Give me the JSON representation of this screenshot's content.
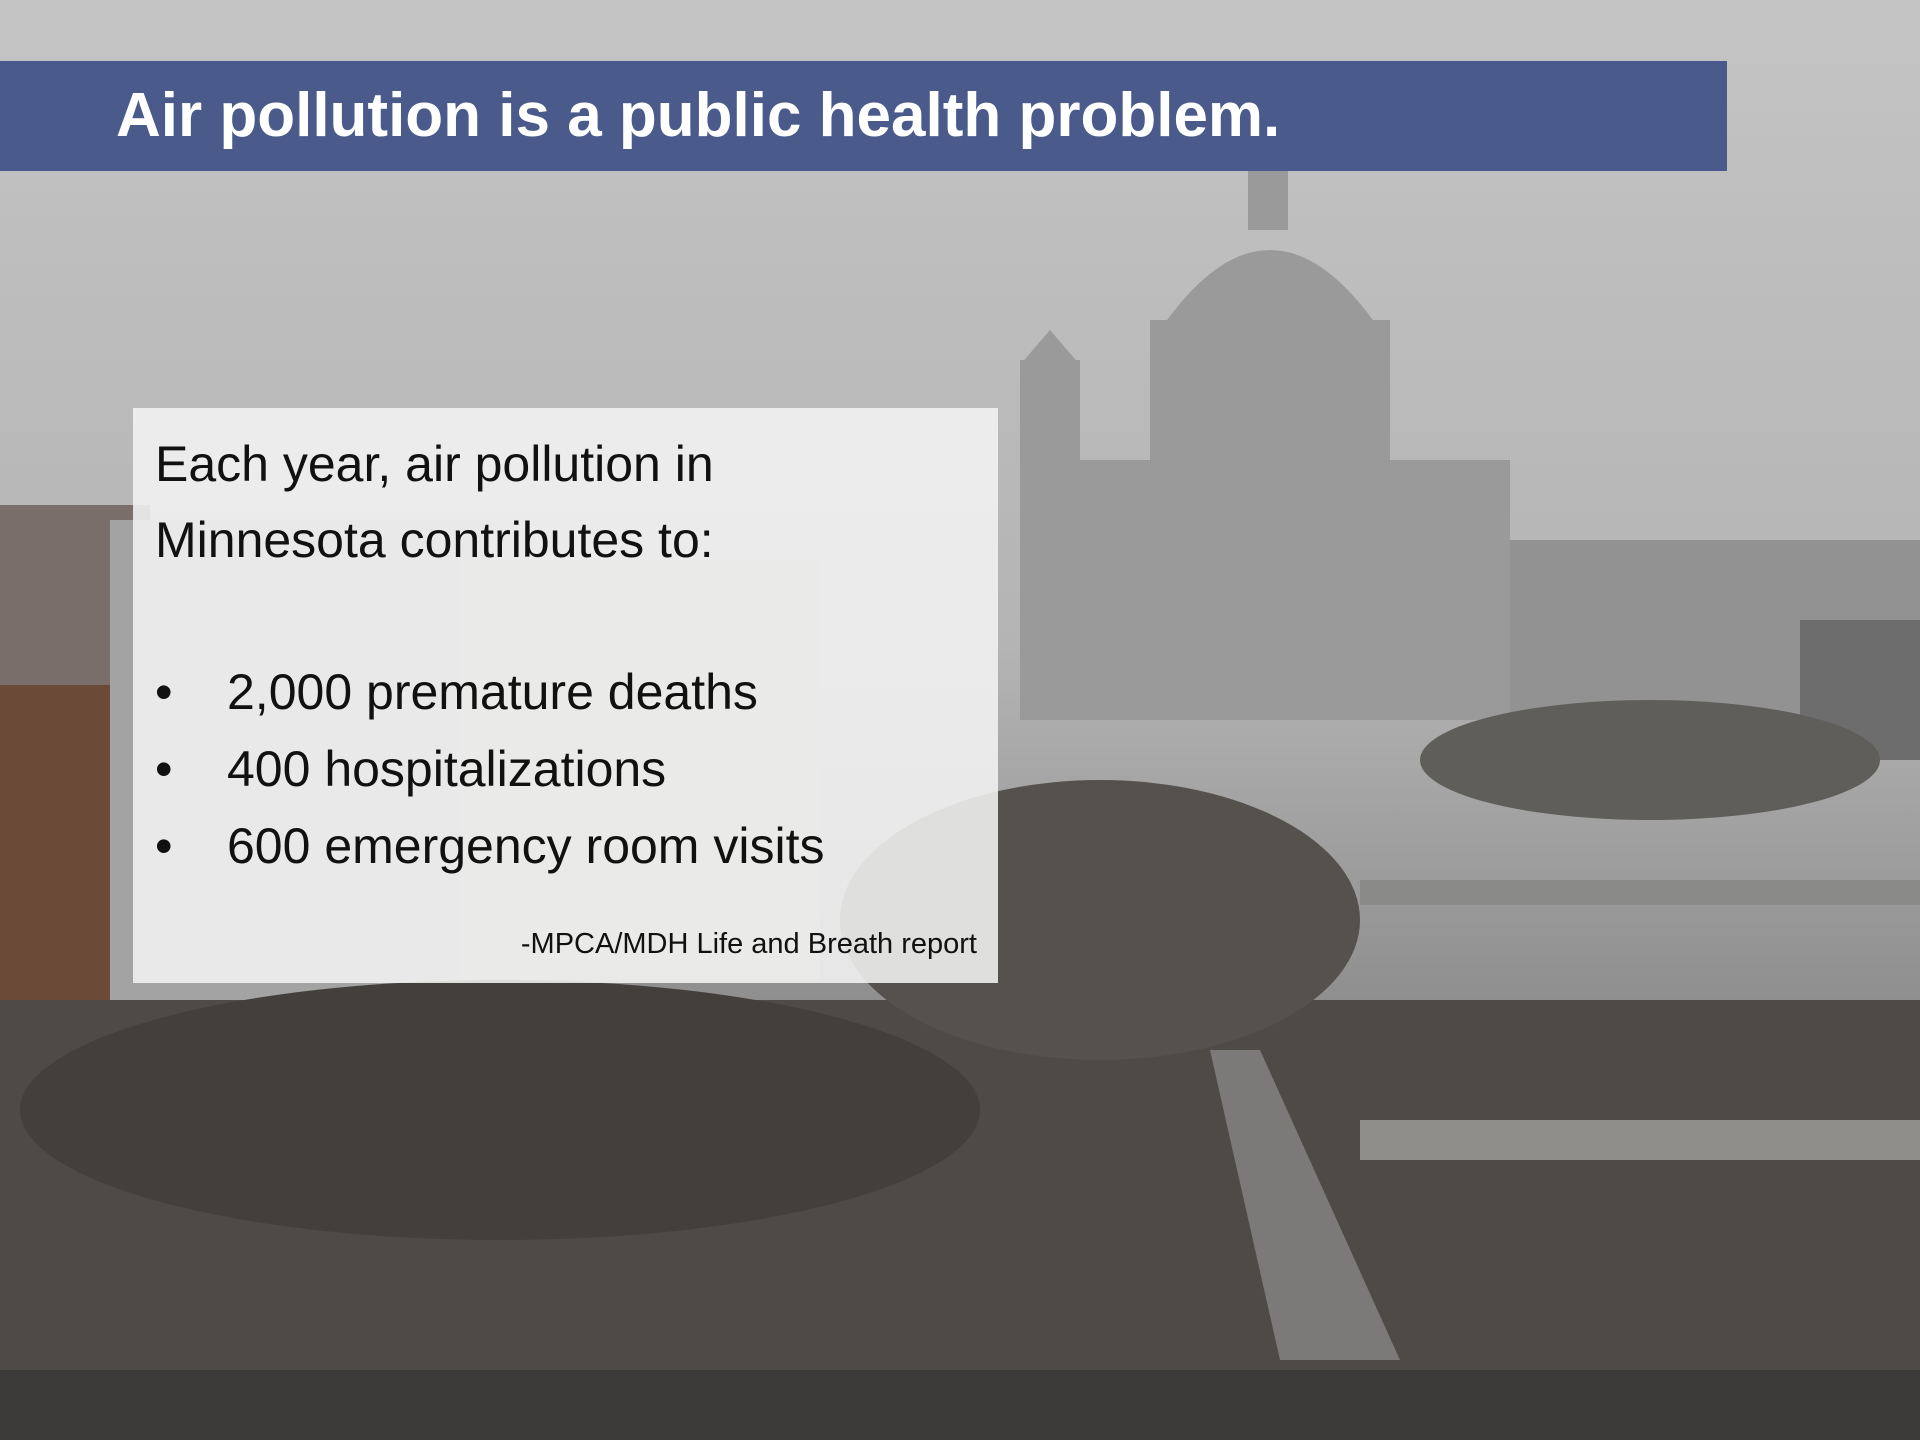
{
  "title": "Air pollution is a public health problem.",
  "textbox": {
    "intro": "Each year, air pollution in Minnesota contributes to:",
    "bullets": [
      "2,000 premature deaths",
      "400 hospitalizations",
      "600 emergency room visits"
    ],
    "source": "-MPCA/MDH Life and Breath report"
  }
}
